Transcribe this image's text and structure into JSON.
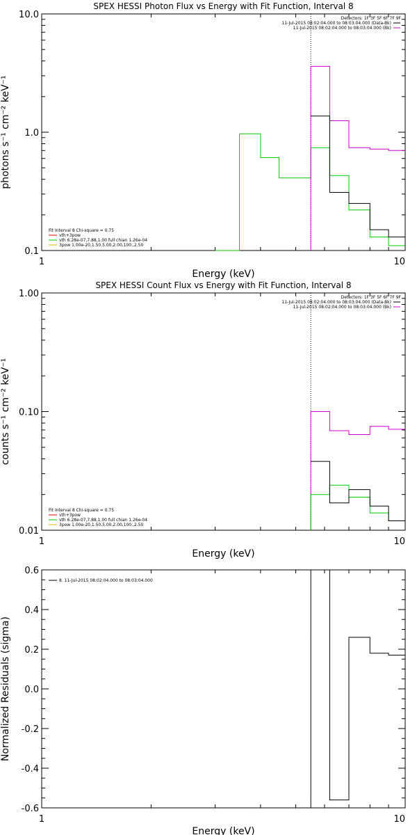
{
  "chart_data": [
    {
      "type": "line",
      "title": "SPEX HESSI Photon Flux vs Energy with Fit Function, Interval 8",
      "xlabel": "Energy (keV)",
      "ylabel": "photons s⁻¹ cm⁻² keV⁻¹",
      "xscale": "log",
      "yscale": "log",
      "xlim": [
        1,
        10
      ],
      "ylim": [
        0.1,
        10
      ],
      "xticks": [
        {
          "v": 1,
          "label": "1"
        },
        {
          "v": 10,
          "label": "10"
        }
      ],
      "yticks": [
        {
          "v": 0.1,
          "label": "0.1"
        },
        {
          "v": 1,
          "label": "1.0"
        },
        {
          "v": 10,
          "label": "10.0"
        }
      ],
      "vline": 5.5,
      "legend_topright": [
        {
          "text": "Detectors: 1F 3F 5F 6F 7F 9F",
          "color": null
        },
        {
          "text": "11-Jul-2015 08:02:04.000 to 08:03:04.000 (Data-Bk)",
          "color": "#000000"
        },
        {
          "text": "11-Jul-2015 08:02:04.000 to 08:03:04.000 (Bk)",
          "color": "#cc00cc"
        }
      ],
      "legend_bottomleft": [
        {
          "text": "Fit Interval  8    Chi-square = 0.75",
          "color": null
        },
        {
          "text": "vth+3pow",
          "color": "#dd0000"
        },
        {
          "text": "vth 6.28e-07,7.88,1.00  full chian 1.26e-04",
          "color": "#00cc00"
        },
        {
          "text": "3pow 1.00e-20,1.50,5.00,2.00,100.,2.50",
          "color": "#ddbb00"
        }
      ],
      "series": [
        {
          "color": "#00cc00",
          "x": [
            3.0,
            3.5,
            3.5,
            4.0,
            4.0,
            4.5,
            4.5,
            5.5,
            5.5,
            6.2,
            6.2,
            7.0,
            7.0,
            8.0,
            8.0,
            9.0,
            9.0,
            10.0,
            10.0
          ],
          "values": [
            0.1,
            0.1,
            0.97,
            0.97,
            0.61,
            0.61,
            0.41,
            0.41,
            0.74,
            0.74,
            0.43,
            0.43,
            0.22,
            0.22,
            0.13,
            0.13,
            0.11,
            0.11,
            0.1
          ]
        },
        {
          "color": "#cc00cc",
          "x": [
            5.5,
            5.5,
            6.2,
            6.2,
            7.0,
            7.0,
            8.0,
            8.0,
            9.0,
            9.0,
            10.0
          ],
          "values": [
            0.1,
            3.6,
            3.6,
            1.25,
            1.25,
            0.74,
            0.74,
            0.72,
            0.72,
            0.7,
            0.7
          ]
        },
        {
          "color": "#000000",
          "x": [
            5.5,
            6.2,
            6.2,
            7.0,
            7.0,
            8.0,
            8.0,
            9.0,
            9.0,
            10.0,
            10.0
          ],
          "values": [
            1.37,
            1.37,
            0.31,
            0.31,
            0.25,
            0.25,
            0.15,
            0.15,
            0.13,
            0.13,
            0.1
          ]
        }
      ]
    },
    {
      "type": "line",
      "title": "SPEX HESSI Count Flux vs Energy with Fit Function, Interval 8",
      "xlabel": "Energy (keV)",
      "ylabel": "counts s⁻¹ cm⁻² keV⁻¹",
      "xscale": "log",
      "yscale": "log",
      "xlim": [
        1,
        10
      ],
      "ylim": [
        0.01,
        1
      ],
      "xticks": [
        {
          "v": 1,
          "label": "1"
        },
        {
          "v": 10,
          "label": "10"
        }
      ],
      "yticks": [
        {
          "v": 0.01,
          "label": "0.01"
        },
        {
          "v": 0.1,
          "label": "0.10"
        },
        {
          "v": 1,
          "label": "1.00"
        }
      ],
      "vline": 5.5,
      "legend_topright": [
        {
          "text": "Detectors: 1F 3F 5F 6F 7F 9F",
          "color": null
        },
        {
          "text": "11-Jul-2015 08:02:04.000 to 08:03:04.000 (Data-Bk)",
          "color": "#000000"
        },
        {
          "text": "11-Jul-2015 08:02:04.000 to 08:03:04.000 (Bk)",
          "color": "#cc00cc"
        }
      ],
      "legend_bottomleft": [
        {
          "text": "Fit Interval  8    Chi-square = 0.75",
          "color": null
        },
        {
          "text": "vth+3pow",
          "color": "#dd0000"
        },
        {
          "text": "vth 6.28e-07,7.88,1.00  full chian 1.26e-04",
          "color": "#00cc00"
        },
        {
          "text": "3pow 1.00e-20,1.50,5.00,2.00,100.,2.50",
          "color": "#ddbb00"
        }
      ],
      "series": [
        {
          "color": "#cc00cc",
          "x": [
            5.5,
            5.5,
            6.2,
            6.2,
            7.0,
            7.0,
            8.0,
            8.0,
            9.0,
            9.0,
            10.0
          ],
          "values": [
            0.01,
            0.1,
            0.1,
            0.069,
            0.069,
            0.064,
            0.064,
            0.075,
            0.075,
            0.071,
            0.071
          ]
        },
        {
          "color": "#00cc00",
          "x": [
            5.5,
            5.5,
            6.2,
            6.2,
            7.0,
            7.0,
            8.0,
            8.0,
            9.0,
            9.0,
            10.0,
            10.0
          ],
          "values": [
            0.01,
            0.02,
            0.02,
            0.024,
            0.024,
            0.019,
            0.019,
            0.014,
            0.014,
            0.012,
            0.012,
            0.01
          ]
        },
        {
          "color": "#000000",
          "x": [
            5.5,
            6.2,
            6.2,
            7.0,
            7.0,
            8.0,
            8.0,
            9.0,
            9.0,
            10.0,
            10.0
          ],
          "values": [
            0.038,
            0.038,
            0.017,
            0.017,
            0.022,
            0.022,
            0.016,
            0.016,
            0.012,
            0.012,
            0.01
          ]
        }
      ]
    },
    {
      "type": "line",
      "title": "",
      "xlabel": "Energy (keV)",
      "ylabel": "Normalized Residuals (sigma)",
      "xscale": "log",
      "yscale": "linear",
      "xlim": [
        1,
        10
      ],
      "ylim": [
        -0.6,
        0.6
      ],
      "xticks": [
        {
          "v": 1,
          "label": "1"
        },
        {
          "v": 10,
          "label": "10"
        }
      ],
      "yticks": [
        {
          "v": -0.6,
          "label": "-0.6"
        },
        {
          "v": -0.4,
          "label": "-0.4"
        },
        {
          "v": -0.2,
          "label": "-0.2"
        },
        {
          "v": 0,
          "label": "0.0"
        },
        {
          "v": 0.2,
          "label": "0.2"
        },
        {
          "v": 0.4,
          "label": "0.4"
        },
        {
          "v": 0.6,
          "label": "0.6"
        }
      ],
      "legend_topleft": [
        {
          "text": "8. 11-Jul-2015 08:02:04.000 to 08:03:04.000",
          "color": "#000000"
        }
      ],
      "series": [
        {
          "color": "#000000",
          "x": [
            5.5,
            5.5,
            6.2,
            6.2,
            7.0,
            7.0,
            8.0,
            8.0,
            9.0,
            9.0,
            10.0
          ],
          "values": [
            -0.6,
            0.6,
            0.6,
            -0.56,
            -0.56,
            0.26,
            0.26,
            0.18,
            0.18,
            0.17,
            0.17
          ]
        }
      ]
    }
  ]
}
